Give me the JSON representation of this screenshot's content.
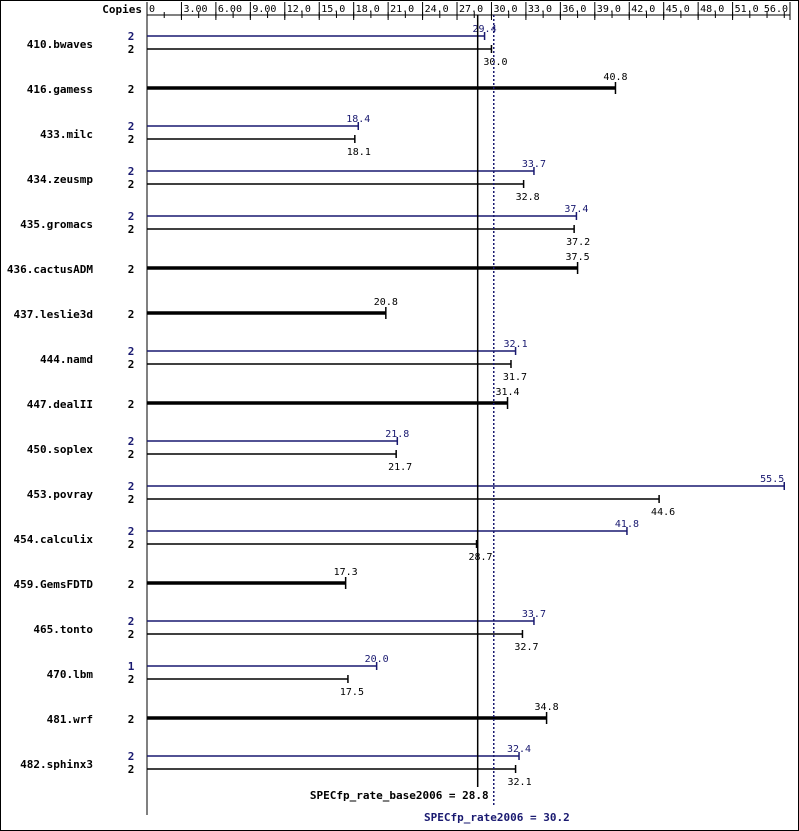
{
  "chart_data": {
    "type": "bar",
    "orientation": "horizontal",
    "copies_header": "Copies",
    "x_range": [
      0,
      56
    ],
    "x_ticks": [
      "0",
      "3.00",
      "6.00",
      "9.00",
      "12.0",
      "15.0",
      "18.0",
      "21.0",
      "24.0",
      "27.0",
      "30.0",
      "33.0",
      "36.0",
      "39.0",
      "42.0",
      "45.0",
      "48.0",
      "51.0",
      "56.0"
    ],
    "colors": {
      "base": "#000000",
      "peak": "#191970",
      "background": "#ffffff"
    },
    "benchmarks": [
      {
        "name": "410.bwaves",
        "peak": 29.4,
        "peak_copies": "2",
        "peak_label": "29.4",
        "base": 30.0,
        "base_copies": "2",
        "base_label": "30.0"
      },
      {
        "name": "416.gamess",
        "base": 40.8,
        "base_copies": "2",
        "base_label": "40.8",
        "single": true
      },
      {
        "name": "433.milc",
        "peak": 18.4,
        "peak_copies": "2",
        "peak_label": "18.4",
        "base": 18.1,
        "base_copies": "2",
        "base_label": "18.1"
      },
      {
        "name": "434.zeusmp",
        "peak": 33.7,
        "peak_copies": "2",
        "peak_label": "33.7",
        "base": 32.8,
        "base_copies": "2",
        "base_label": "32.8"
      },
      {
        "name": "435.gromacs",
        "peak": 37.4,
        "peak_copies": "2",
        "peak_label": "37.4",
        "base": 37.2,
        "base_copies": "2",
        "base_label": "37.2"
      },
      {
        "name": "436.cactusADM",
        "base": 37.5,
        "base_copies": "2",
        "base_label": "37.5",
        "single": true
      },
      {
        "name": "437.leslie3d",
        "base": 20.8,
        "base_copies": "2",
        "base_label": "20.8",
        "single": true
      },
      {
        "name": "444.namd",
        "peak": 32.1,
        "peak_copies": "2",
        "peak_label": "32.1",
        "base": 31.7,
        "base_copies": "2",
        "base_label": "31.7"
      },
      {
        "name": "447.dealII",
        "base": 31.4,
        "base_copies": "2",
        "base_label": "31.4",
        "single": true
      },
      {
        "name": "450.soplex",
        "peak": 21.8,
        "peak_copies": "2",
        "peak_label": "21.8",
        "base": 21.7,
        "base_copies": "2",
        "base_label": "21.7"
      },
      {
        "name": "453.povray",
        "peak": 55.5,
        "peak_copies": "2",
        "peak_label": "55.5",
        "base": 44.6,
        "base_copies": "2",
        "base_label": "44.6"
      },
      {
        "name": "454.calculix",
        "peak": 41.8,
        "peak_copies": "2",
        "peak_label": "41.8",
        "base": 28.7,
        "base_copies": "2",
        "base_label": "28.7"
      },
      {
        "name": "459.GemsFDTD",
        "base": 17.3,
        "base_copies": "2",
        "base_label": "17.3",
        "single": true
      },
      {
        "name": "465.tonto",
        "peak": 33.7,
        "peak_copies": "2",
        "peak_label": "33.7",
        "base": 32.7,
        "base_copies": "2",
        "base_label": "32.7"
      },
      {
        "name": "470.lbm",
        "peak": 20.0,
        "peak_copies": "1",
        "peak_label": "20.0",
        "base": 17.5,
        "base_copies": "2",
        "base_label": "17.5"
      },
      {
        "name": "481.wrf",
        "base": 34.8,
        "base_copies": "2",
        "base_label": "34.8",
        "single": true
      },
      {
        "name": "482.sphinx3",
        "peak": 32.4,
        "peak_copies": "2",
        "peak_label": "32.4",
        "base": 32.1,
        "base_copies": "2",
        "base_label": "32.1"
      }
    ],
    "base_metric": {
      "label": "SPECfp_rate_base2006 = 28.8",
      "value": 28.8
    },
    "peak_metric": {
      "label": "SPECfp_rate2006 = 30.2",
      "value": 30.2
    }
  }
}
